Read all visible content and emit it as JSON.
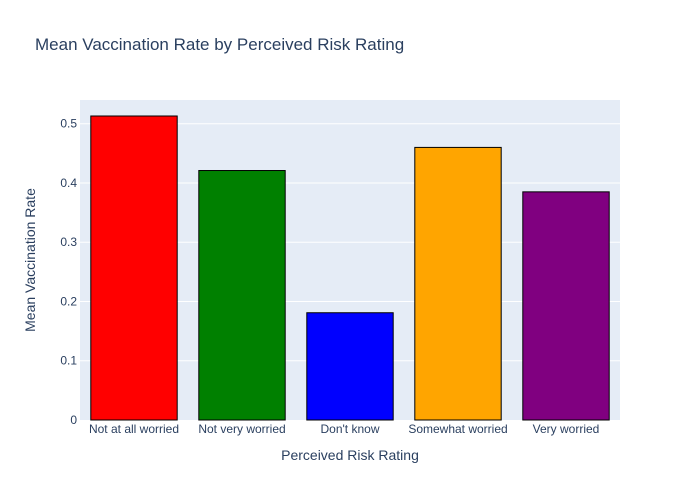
{
  "chart_data": {
    "type": "bar",
    "title": "Mean Vaccination Rate by Perceived Risk Rating",
    "xlabel": "Perceived Risk Rating",
    "ylabel": "Mean Vaccination Rate",
    "categories": [
      "Not at all worried",
      "Not very worried",
      "Don't know",
      "Somewhat worried",
      "Very worried"
    ],
    "values": [
      0.513,
      0.421,
      0.181,
      0.46,
      0.385
    ],
    "colors": [
      "#ff0000",
      "#008000",
      "#0000ff",
      "#ffa500",
      "#800080"
    ],
    "ylim": [
      0,
      0.54
    ],
    "yticks": [
      0,
      0.1,
      0.2,
      0.3,
      0.4,
      0.5
    ],
    "ytick_labels": [
      "0",
      "0.1",
      "0.2",
      "0.3",
      "0.4",
      "0.5"
    ],
    "grid": true,
    "plot_bg": "#e5ecf6",
    "bar_outline": "#000000"
  }
}
